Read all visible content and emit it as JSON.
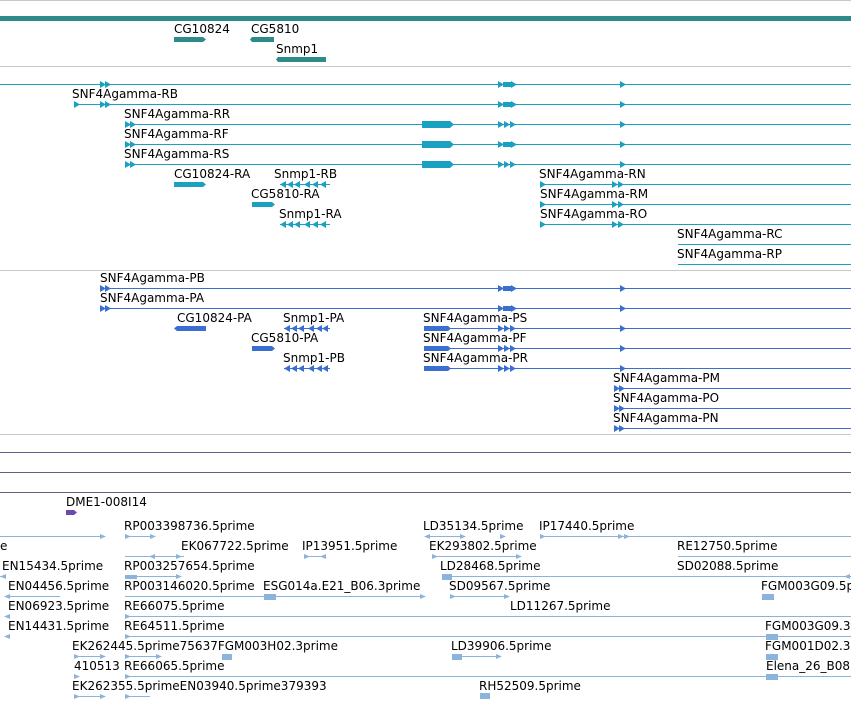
{
  "colors": {
    "gene_track": "#2e8b8b",
    "flybase_transcripts": "#1aa0c0",
    "mrna_transcripts": "#3a6fd0",
    "ests": "#8ab4dc",
    "clone": "#6a4ab0",
    "divider": "#c8c8c8"
  },
  "tracks": {
    "genes": [
      "CG10824",
      "CG5810",
      "Snmp1"
    ],
    "transcripts_cyan": [
      "SNF4Agamma-RB",
      "SNF4Agamma-RR",
      "SNF4Agamma-RF",
      "SNF4Agamma-RS",
      "CG10824-RA",
      "Snmp1-RB",
      "SNF4Agamma-RN",
      "CG5810-RA",
      "SNF4Agamma-RM",
      "Snmp1-RA",
      "SNF4Agamma-RO",
      "SNF4Agamma-RC",
      "SNF4Agamma-RP"
    ],
    "transcripts_blue": [
      "SNF4Agamma-PB",
      "SNF4Agamma-PA",
      "CG10824-PA",
      "Snmp1-PA",
      "SNF4Agamma-PS",
      "CG5810-PA",
      "SNF4Agamma-PF",
      "Snmp1-PB",
      "SNF4Agamma-PR",
      "SNF4Agamma-PM",
      "SNF4Agamma-PO",
      "SNF4Agamma-PN"
    ],
    "clone": "DME1-008I14",
    "ests": [
      "RP003398736.5prime",
      "LD35134.5prime",
      "IP17440.5prime",
      "e",
      "EK067722.5prime",
      "IP13951.5prime",
      "EK293802.5prime",
      "RE12750.5prime",
      "EN15434.5prime",
      "RP003257654.5prime",
      "LD28468.5prime",
      "SD02088.5prime",
      "EN04456.5prime",
      "RP003146020.5prime",
      "ESG014a.E21_B06.3prime",
      "SD09567.5prime",
      "FGM003G09.5p",
      "EN06923.5prime",
      "RE66075.5prime",
      "LD11267.5prime",
      "EN14431.5prime",
      "RE64511.5prime",
      "FGM003G09.3",
      "EK262445.5prime75637FGM003H02.3prime",
      "LD39906.5prime",
      "FGM001D02.3",
      "410513",
      "RE66065.5prime",
      "Elena_26_B08",
      "EK262355.5primeEN03940.5prime379393",
      "RH52509.5prime"
    ]
  }
}
